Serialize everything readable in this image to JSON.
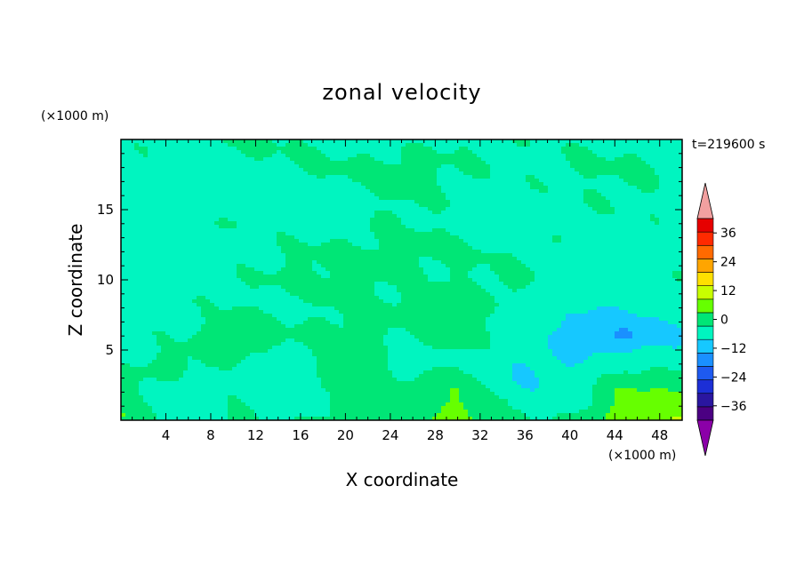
{
  "chart_data": {
    "type": "heatmap",
    "title": "zonal velocity",
    "xlabel": "X coordinate",
    "ylabel": "Z coordinate",
    "x_unit": "(×1000 m)",
    "y_unit": "(×1000 m)",
    "time_label": "t=219600 s",
    "xlim": [
      0,
      50
    ],
    "ylim": [
      0,
      20
    ],
    "x_ticks": [
      4,
      8,
      12,
      16,
      20,
      24,
      28,
      32,
      36,
      40,
      44,
      48
    ],
    "y_ticks": [
      5,
      10,
      15
    ],
    "colorbar": {
      "levels": [
        -42,
        -36,
        -30,
        -24,
        -18,
        -12,
        -6,
        0,
        6,
        12,
        18,
        24,
        30,
        36,
        42
      ],
      "labeled_ticks": [
        36,
        24,
        12,
        0,
        -12,
        -24,
        -36
      ],
      "colors": [
        "#4b0082",
        "#2a16a0",
        "#1c2fd6",
        "#1e5af0",
        "#1a90ff",
        "#16c8ff",
        "#00f5c0",
        "#00e676",
        "#66ff00",
        "#c8ff00",
        "#ffe000",
        "#ffa500",
        "#ff6a00",
        "#ff2a00",
        "#e60000"
      ],
      "over_color": "#f2a0a0",
      "under_color": "#8b00a8"
    },
    "field": {
      "x": [
        0,
        5,
        10,
        15,
        20,
        25,
        30,
        35,
        40,
        45,
        50
      ],
      "z": [
        0,
        2,
        4,
        6,
        8,
        10,
        12,
        14,
        16,
        18,
        20
      ],
      "u": [
        [
          6,
          -3,
          2,
          -2,
          3,
          4,
          8,
          2,
          -1,
          11,
          12
        ],
        [
          3,
          -4,
          -2,
          -6,
          2,
          3,
          6,
          -5,
          -4,
          7,
          6
        ],
        [
          -1,
          2,
          0,
          -3,
          5,
          -4,
          0,
          -6,
          -6,
          -1,
          -2
        ],
        [
          -2,
          -1,
          3,
          1,
          2,
          0,
          2,
          -2,
          -8,
          -13,
          -6
        ],
        [
          -3,
          -2,
          0,
          -2,
          1,
          1,
          2,
          -1,
          -5,
          -6,
          -3
        ],
        [
          -2,
          -2,
          -1,
          1,
          2,
          0,
          0,
          1,
          -2,
          -3,
          -1
        ],
        [
          -3,
          -2,
          -2,
          0,
          1,
          2,
          1,
          -1,
          -1,
          -2,
          -2
        ],
        [
          -2,
          -1,
          -1,
          -2,
          -1,
          0,
          -1,
          -2,
          -2,
          -1,
          -2
        ],
        [
          -3,
          -4,
          -4,
          -2,
          -2,
          1,
          -1,
          -2,
          -1,
          0,
          -1
        ],
        [
          -1,
          -2,
          -1,
          0,
          1,
          2,
          0,
          -1,
          0,
          1,
          -1
        ],
        [
          -1,
          -2,
          1,
          0,
          -1,
          -2,
          0,
          -1,
          -1,
          -1,
          -2
        ]
      ]
    }
  }
}
